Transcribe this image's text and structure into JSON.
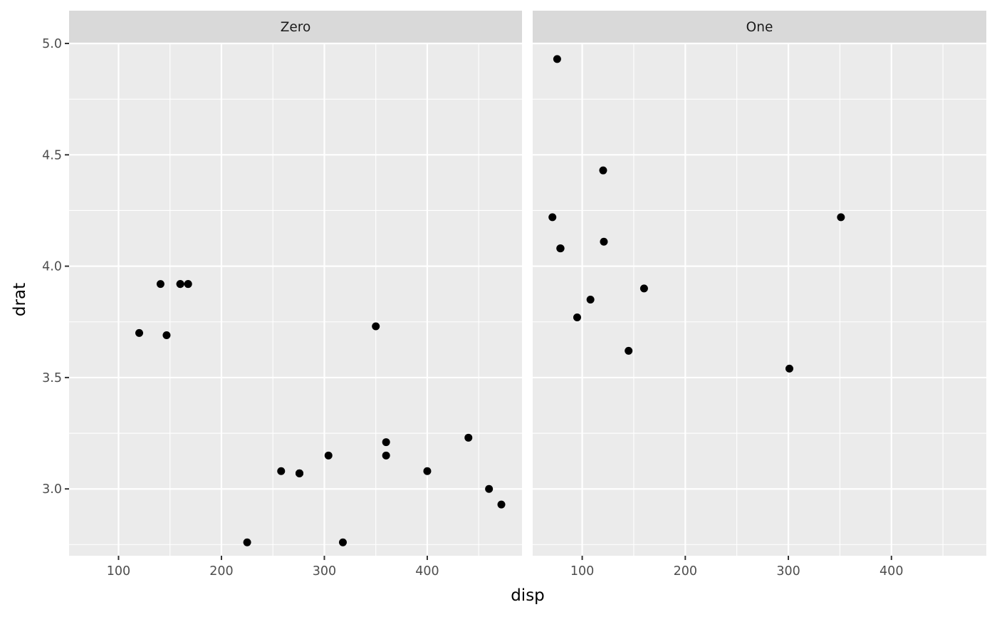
{
  "chart_data": {
    "type": "scatter",
    "xlabel": "disp",
    "ylabel": "drat",
    "xlim": [
      51.945,
      492.055
    ],
    "ylim": [
      2.7,
      5.0
    ],
    "x_ticks": [
      100,
      200,
      300,
      400
    ],
    "x_minor_ticks": [
      150,
      250,
      350,
      450
    ],
    "y_ticks": [
      3.0,
      3.5,
      4.0,
      4.5,
      5.0
    ],
    "y_tick_labels": [
      "3.0",
      "3.5",
      "4.0",
      "4.5",
      "5.0"
    ],
    "y_minor_ticks": [
      2.75,
      3.25,
      3.75,
      4.25,
      4.75
    ],
    "grid": true,
    "legend": "none",
    "point_color": "#000000",
    "panels": [
      {
        "label": "Zero",
        "points": [
          {
            "x": 160,
            "y": 3.92
          },
          {
            "x": 160,
            "y": 3.92
          },
          {
            "x": 258,
            "y": 3.08
          },
          {
            "x": 360,
            "y": 3.15
          },
          {
            "x": 225,
            "y": 2.76
          },
          {
            "x": 360,
            "y": 3.21
          },
          {
            "x": 146.7,
            "y": 3.69
          },
          {
            "x": 140.8,
            "y": 3.92
          },
          {
            "x": 167.6,
            "y": 3.92
          },
          {
            "x": 167.6,
            "y": 3.92
          },
          {
            "x": 275.8,
            "y": 3.07
          },
          {
            "x": 275.8,
            "y": 3.07
          },
          {
            "x": 275.8,
            "y": 3.07
          },
          {
            "x": 472,
            "y": 2.93
          },
          {
            "x": 460,
            "y": 3.0
          },
          {
            "x": 440,
            "y": 3.23
          },
          {
            "x": 120.1,
            "y": 3.7
          },
          {
            "x": 318,
            "y": 2.76
          },
          {
            "x": 304,
            "y": 3.15
          },
          {
            "x": 350,
            "y": 3.73
          },
          {
            "x": 400,
            "y": 3.08
          }
        ]
      },
      {
        "label": "One",
        "points": [
          {
            "x": 108,
            "y": 3.85
          },
          {
            "x": 78.7,
            "y": 4.08
          },
          {
            "x": 75.7,
            "y": 4.93
          },
          {
            "x": 71.1,
            "y": 4.22
          },
          {
            "x": 79,
            "y": 4.08
          },
          {
            "x": 120.3,
            "y": 4.43
          },
          {
            "x": 95.1,
            "y": 3.77
          },
          {
            "x": 351,
            "y": 4.22
          },
          {
            "x": 145,
            "y": 3.62
          },
          {
            "x": 121,
            "y": 4.11
          },
          {
            "x": 160,
            "y": 3.9
          },
          {
            "x": 301,
            "y": 3.54
          }
        ]
      }
    ]
  }
}
